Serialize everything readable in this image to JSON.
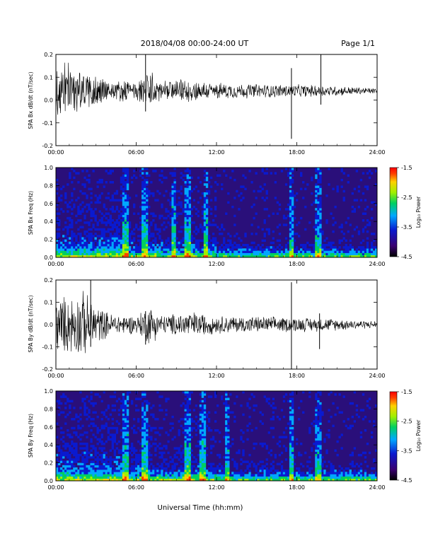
{
  "header": {
    "title": "2018/04/08  00:00-24:00 UT",
    "page": "Page 1/1"
  },
  "colors": {
    "trace": "#000000",
    "background_spectrogram": "#2a0f7a",
    "colorbar_stops": [
      "#000000",
      "#3a0070",
      "#0a1ad0",
      "#00a8ff",
      "#00d060",
      "#a0f000",
      "#ffd000",
      "#ff4000",
      "#ff0000"
    ]
  },
  "x_axis": {
    "ticks": [
      "00:00",
      "06:00",
      "12:00",
      "18:00",
      "24:00"
    ],
    "label": "Universal Time (hh:mm)"
  },
  "chart_data": [
    {
      "type": "line",
      "name": "bx-waveform",
      "ylabel": "SPA Bx dB/dt (nT/sec)",
      "ylim": [
        -0.2,
        0.2
      ],
      "yticks": [
        "0.2",
        "0.1",
        "0.0",
        "-0.1",
        "-0.2"
      ],
      "xlim_hours": [
        0,
        24
      ],
      "baseline": 0.04,
      "envelope": [
        {
          "t": 0,
          "amp": 0.13
        },
        {
          "t": 1,
          "amp": 0.12
        },
        {
          "t": 2,
          "amp": 0.09
        },
        {
          "t": 3,
          "amp": 0.08
        },
        {
          "t": 4,
          "amp": 0.05
        },
        {
          "t": 6,
          "amp": 0.04
        },
        {
          "t": 7,
          "amp": 0.09
        },
        {
          "t": 8,
          "amp": 0.04
        },
        {
          "t": 10,
          "amp": 0.05
        },
        {
          "t": 12,
          "amp": 0.035
        },
        {
          "t": 16,
          "amp": 0.03
        },
        {
          "t": 20,
          "amp": 0.025
        },
        {
          "t": 24,
          "amp": 0.012
        }
      ],
      "spikes": [
        {
          "t": 6.7,
          "min": -0.05,
          "max": 0.2
        },
        {
          "t": 17.6,
          "min": -0.17,
          "max": 0.14
        },
        {
          "t": 19.8,
          "min": -0.02,
          "max": 0.2
        }
      ]
    },
    {
      "type": "heatmap",
      "name": "bx-spectrogram",
      "ylabel": "SPA Bx Freq (Hz)",
      "ylim": [
        0.0,
        1.0
      ],
      "yticks": [
        "1.0",
        "0.8",
        "0.6",
        "0.4",
        "0.2",
        "0.0"
      ],
      "xlim_hours": [
        0,
        24
      ],
      "colorbar": {
        "label": "Log₁₀ Power",
        "ticks": [
          "-1.5",
          "-2.5",
          "-3.5",
          "-4.5"
        ],
        "range": [
          -4.5,
          -1.5
        ]
      },
      "bright_bands_hours": [
        5.2,
        6.7,
        8.8,
        9.8,
        11.2,
        17.6,
        19.6
      ]
    },
    {
      "type": "line",
      "name": "by-waveform",
      "ylabel": "SPA By dB/dt (nT/sec)",
      "ylim": [
        -0.2,
        0.2
      ],
      "yticks": [
        "0.2",
        "0.1",
        "0.0",
        "-0.1",
        "-0.2"
      ],
      "xlim_hours": [
        0,
        24
      ],
      "baseline": 0.0,
      "envelope": [
        {
          "t": 0,
          "amp": 0.12
        },
        {
          "t": 1,
          "amp": 0.13
        },
        {
          "t": 2,
          "amp": 0.15
        },
        {
          "t": 3,
          "amp": 0.09
        },
        {
          "t": 4,
          "amp": 0.05
        },
        {
          "t": 6,
          "amp": 0.04
        },
        {
          "t": 7,
          "amp": 0.09
        },
        {
          "t": 8,
          "amp": 0.04
        },
        {
          "t": 10,
          "amp": 0.06
        },
        {
          "t": 12,
          "amp": 0.04
        },
        {
          "t": 16,
          "amp": 0.035
        },
        {
          "t": 20,
          "amp": 0.03
        },
        {
          "t": 24,
          "amp": 0.015
        }
      ],
      "spikes": [
        {
          "t": 2.6,
          "min": -0.1,
          "max": 0.2
        },
        {
          "t": 6.7,
          "min": -0.09,
          "max": 0.06
        },
        {
          "t": 17.6,
          "min": -0.2,
          "max": 0.19
        },
        {
          "t": 19.7,
          "min": -0.11,
          "max": 0.05
        }
      ]
    },
    {
      "type": "heatmap",
      "name": "by-spectrogram",
      "ylabel": "SPA By Freq (Hz)",
      "ylim": [
        0.0,
        1.0
      ],
      "yticks": [
        "1.0",
        "0.8",
        "0.6",
        "0.4",
        "0.2",
        "0.0"
      ],
      "xlim_hours": [
        0,
        24
      ],
      "colorbar": {
        "label": "Log₁₀ Power",
        "ticks": [
          "-1.5",
          "-2.5",
          "-3.5",
          "-4.5"
        ],
        "range": [
          -4.5,
          -1.5
        ]
      },
      "bright_bands_hours": [
        5.2,
        6.7,
        9.8,
        11.0,
        12.8,
        17.6,
        19.6
      ]
    }
  ]
}
